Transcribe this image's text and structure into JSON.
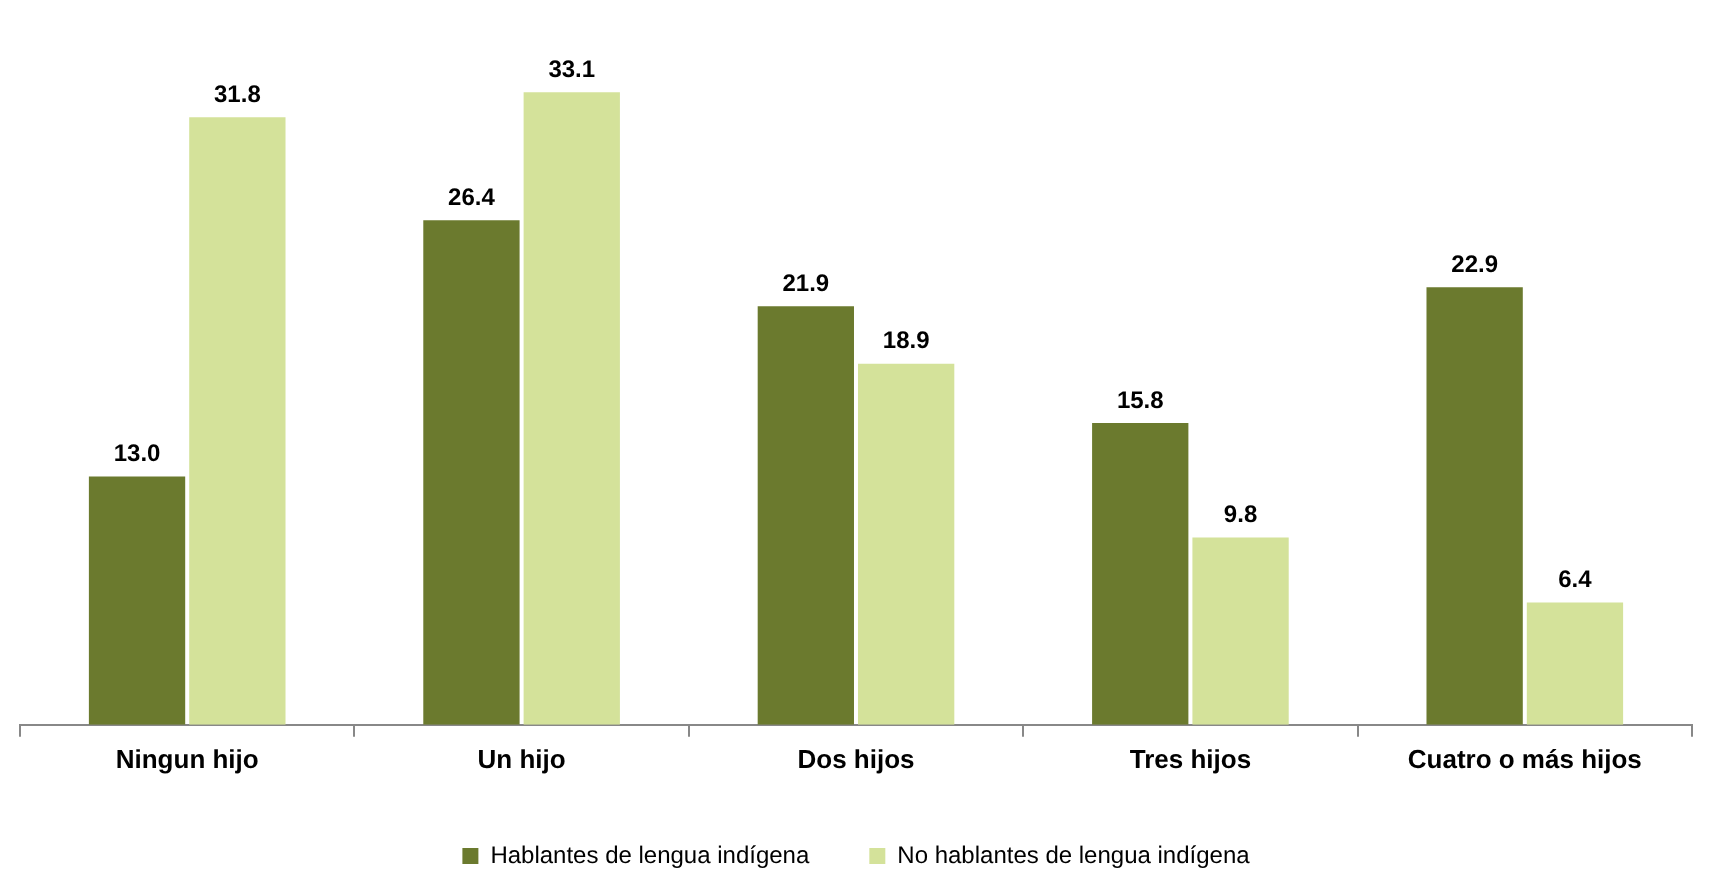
{
  "chart_data": {
    "type": "bar",
    "categories": [
      "Ningun hijo",
      "Un hijo",
      "Dos hijos",
      "Tres hijos",
      "Cuatro o más hijos"
    ],
    "series": [
      {
        "name": "Hablantes de lengua indígena",
        "color": "#6b7a2e",
        "values": [
          13.0,
          26.4,
          21.9,
          15.8,
          22.9
        ],
        "value_labels": [
          "13.0",
          "26.4",
          "21.9",
          "15.8",
          "22.9"
        ]
      },
      {
        "name": "No hablantes de lengua indígena",
        "color": "#d4e29a",
        "values": [
          31.8,
          33.1,
          18.9,
          9.8,
          6.4
        ],
        "value_labels": [
          "31.8",
          "33.1",
          "18.9",
          "9.8",
          "6.4"
        ]
      }
    ],
    "grid": false,
    "legend": "bottom"
  }
}
